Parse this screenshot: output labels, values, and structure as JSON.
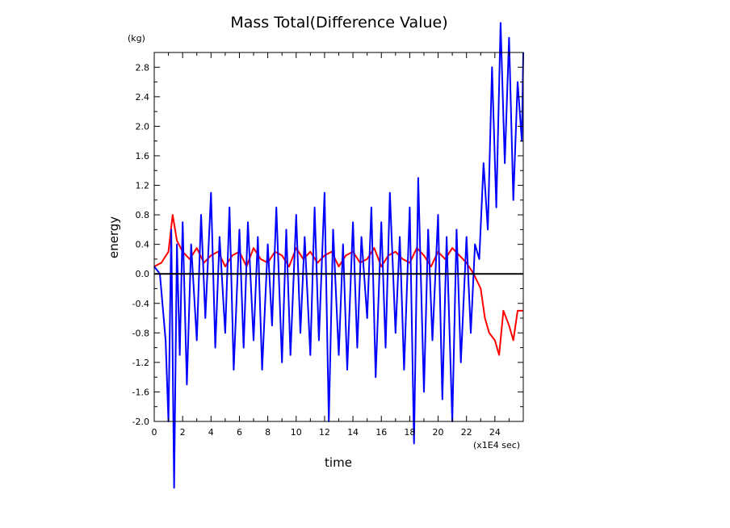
{
  "chart_data": {
    "type": "line",
    "title": "Mass Total(Difference Value)",
    "xlabel": "time",
    "ylabel": "energy",
    "y_unit": "(kg)",
    "x_unit": "(x1E4 sec)",
    "xlim": [
      0,
      26
    ],
    "ylim": [
      -2.0,
      3.0
    ],
    "x_ticks": [
      0,
      2,
      4,
      6,
      8,
      10,
      12,
      14,
      16,
      18,
      20,
      22,
      24
    ],
    "x_tick_labels": [
      "0",
      "2",
      "4",
      "6",
      "8",
      "10",
      "12",
      "14",
      "16",
      "18",
      "20",
      "22",
      "24"
    ],
    "y_ticks": [
      -2.0,
      -1.6,
      -1.2,
      -0.8,
      -0.4,
      0.0,
      0.4,
      0.8,
      1.2,
      1.6,
      2.0,
      2.4,
      2.8
    ],
    "y_tick_labels": [
      "-2.0",
      "-1.6",
      "-1.2",
      "-0.8",
      "-0.4",
      "0.0",
      "0.4",
      "0.8",
      "1.2",
      "1.6",
      "2.0",
      "2.4",
      "2.8"
    ],
    "reference_line_y": 0.0,
    "grid": false,
    "series": [
      {
        "color": "#ff0000",
        "x": [
          0,
          0.5,
          1.0,
          1.3,
          1.6,
          2.0,
          2.5,
          3.0,
          3.5,
          4.0,
          4.5,
          5.0,
          5.5,
          6.0,
          6.5,
          7.0,
          7.5,
          8.0,
          8.5,
          9.0,
          9.5,
          10.0,
          10.5,
          11.0,
          11.5,
          12.0,
          12.5,
          13.0,
          13.5,
          14.0,
          14.5,
          15.0,
          15.5,
          16.0,
          16.5,
          17.0,
          17.5,
          18.0,
          18.5,
          19.0,
          19.5,
          20.0,
          20.5,
          21.0,
          21.5,
          22.0,
          22.5,
          23.0,
          23.3,
          23.6,
          24.0,
          24.3,
          24.6,
          25.0,
          25.3,
          25.6,
          26.0
        ],
        "y": [
          0.1,
          0.15,
          0.3,
          0.8,
          0.45,
          0.3,
          0.2,
          0.35,
          0.15,
          0.25,
          0.3,
          0.1,
          0.25,
          0.3,
          0.1,
          0.35,
          0.2,
          0.15,
          0.3,
          0.25,
          0.1,
          0.35,
          0.2,
          0.3,
          0.15,
          0.25,
          0.3,
          0.1,
          0.25,
          0.3,
          0.15,
          0.2,
          0.35,
          0.1,
          0.25,
          0.3,
          0.2,
          0.15,
          0.35,
          0.25,
          0.1,
          0.3,
          0.2,
          0.35,
          0.25,
          0.15,
          0.0,
          -0.2,
          -0.6,
          -0.8,
          -0.9,
          -1.1,
          -0.5,
          -0.7,
          -0.9,
          -0.5,
          -0.5
        ]
      },
      {
        "color": "#0000ff",
        "x": [
          0,
          0.4,
          0.8,
          1.0,
          1.2,
          1.4,
          1.6,
          1.8,
          2.0,
          2.3,
          2.6,
          3.0,
          3.3,
          3.6,
          4.0,
          4.3,
          4.6,
          5.0,
          5.3,
          5.6,
          6.0,
          6.3,
          6.6,
          7.0,
          7.3,
          7.6,
          8.0,
          8.3,
          8.6,
          9.0,
          9.3,
          9.6,
          10.0,
          10.3,
          10.6,
          11.0,
          11.3,
          11.6,
          12.0,
          12.3,
          12.6,
          13.0,
          13.3,
          13.6,
          14.0,
          14.3,
          14.6,
          15.0,
          15.3,
          15.6,
          16.0,
          16.3,
          16.6,
          17.0,
          17.3,
          17.6,
          18.0,
          18.3,
          18.6,
          19.0,
          19.3,
          19.6,
          20.0,
          20.3,
          20.6,
          21.0,
          21.3,
          21.6,
          22.0,
          22.3,
          22.6,
          22.9,
          23.2,
          23.5,
          23.8,
          24.1,
          24.4,
          24.7,
          25.0,
          25.3,
          25.6,
          25.9,
          26.0
        ],
        "y": [
          0.1,
          0.0,
          -0.9,
          -2.0,
          0.6,
          -2.9,
          0.4,
          -1.1,
          0.7,
          -1.5,
          0.4,
          -0.9,
          0.8,
          -0.6,
          1.1,
          -1.0,
          0.5,
          -0.8,
          0.9,
          -1.3,
          0.6,
          -1.0,
          0.7,
          -0.9,
          0.5,
          -1.3,
          0.4,
          -0.7,
          0.9,
          -1.2,
          0.6,
          -1.1,
          0.8,
          -0.8,
          0.5,
          -1.1,
          0.9,
          -0.9,
          1.1,
          -2.0,
          0.6,
          -1.1,
          0.4,
          -1.3,
          0.7,
          -1.0,
          0.5,
          -0.6,
          0.9,
          -1.4,
          0.7,
          -1.0,
          1.1,
          -0.8,
          0.5,
          -1.3,
          0.9,
          -2.3,
          1.3,
          -1.6,
          0.6,
          -0.9,
          0.8,
          -1.7,
          0.5,
          -2.0,
          0.6,
          -1.2,
          0.5,
          -0.8,
          0.4,
          0.2,
          1.5,
          0.6,
          2.8,
          0.9,
          3.4,
          1.5,
          3.2,
          1.0,
          2.6,
          1.8,
          3.0
        ]
      }
    ]
  }
}
